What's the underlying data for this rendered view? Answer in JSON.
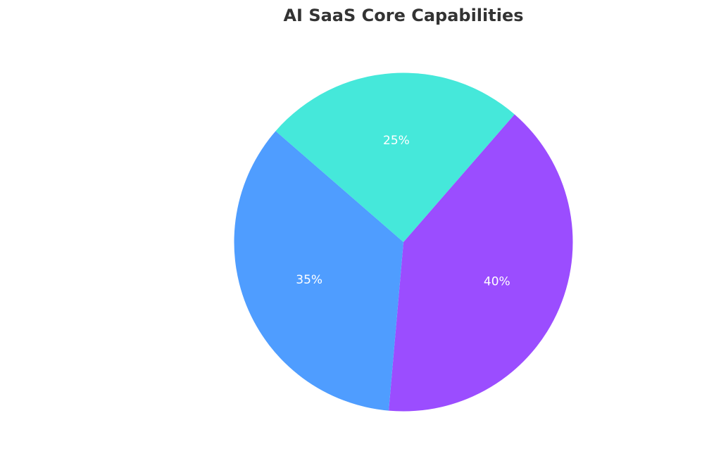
{
  "chart_data": {
    "type": "pie",
    "title": "AI SaaS Core Capabilities",
    "slices": [
      {
        "value": 40,
        "label": "40%",
        "color": "#9B4DFF"
      },
      {
        "value": 35,
        "label": "35%",
        "color": "#4F9DFF"
      },
      {
        "value": 25,
        "label": "25%",
        "color": "#45E8DA"
      }
    ],
    "start_angle_deg": 49,
    "direction": "clockwise"
  }
}
